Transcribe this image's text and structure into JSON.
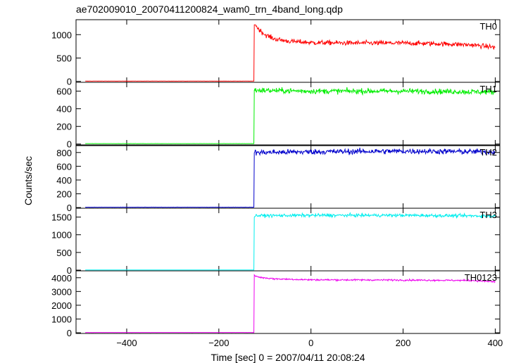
{
  "chart_data": {
    "type": "line",
    "title": "ae702009010_20070411200824_wam0_trn_4band_long.qdp",
    "ylabel": "Counts/sec",
    "xlabel": "Time [sec] 0 = 2007/04/11 20:08:24",
    "xlim": [
      -510,
      410
    ],
    "xticks": [
      -400,
      -200,
      0,
      200,
      400
    ],
    "xtick_labels": [
      "−400",
      "−200",
      "0",
      "200",
      "400"
    ],
    "onset_time": -123,
    "data_start_time": -490,
    "data_end_time": 400,
    "grid": false,
    "legend": "none",
    "panels": [
      {
        "name": "TH0",
        "color": "#ff0000",
        "ylim": [
          -20,
          1320
        ],
        "yticks": [
          0,
          500,
          1000
        ],
        "pre_level": 5,
        "post_profile": [
          [
            -123,
            1250
          ],
          [
            -115,
            1130
          ],
          [
            -100,
            1000
          ],
          [
            -80,
            910
          ],
          [
            -50,
            860
          ],
          [
            0,
            830
          ],
          [
            100,
            820
          ],
          [
            200,
            820
          ],
          [
            300,
            800
          ],
          [
            350,
            780
          ],
          [
            400,
            730
          ]
        ],
        "noise": 50
      },
      {
        "name": "TH1",
        "color": "#00ee00",
        "ylim": [
          -10,
          700
        ],
        "yticks": [
          0,
          200,
          400,
          600
        ],
        "pre_level": 5,
        "post_profile": [
          [
            -123,
            610
          ],
          [
            0,
            600
          ],
          [
            200,
            600
          ],
          [
            400,
            590
          ]
        ],
        "noise": 30
      },
      {
        "name": "TH2",
        "color": "#0000cc",
        "ylim": [
          -10,
          900
        ],
        "yticks": [
          0,
          200,
          400,
          600,
          800
        ],
        "pre_level": 5,
        "post_profile": [
          [
            -123,
            800
          ],
          [
            0,
            810
          ],
          [
            200,
            820
          ],
          [
            400,
            810
          ]
        ],
        "noise": 40
      },
      {
        "name": "TH3",
        "color": "#00eeee",
        "ylim": [
          -20,
          1750
        ],
        "yticks": [
          0,
          500,
          1000,
          1500
        ],
        "pre_level": 5,
        "post_profile": [
          [
            -123,
            1540
          ],
          [
            0,
            1550
          ],
          [
            200,
            1550
          ],
          [
            400,
            1530
          ]
        ],
        "noise": 45
      },
      {
        "name": "TH0123",
        "color": "#ee00ee",
        "ylim": [
          -50,
          4500
        ],
        "yticks": [
          0,
          1000,
          2000,
          3000,
          4000
        ],
        "pre_level": 20,
        "post_profile": [
          [
            -123,
            4150
          ],
          [
            -110,
            4020
          ],
          [
            -80,
            3920
          ],
          [
            0,
            3850
          ],
          [
            200,
            3830
          ],
          [
            350,
            3800
          ],
          [
            400,
            3700
          ]
        ],
        "noise": 60
      }
    ]
  }
}
